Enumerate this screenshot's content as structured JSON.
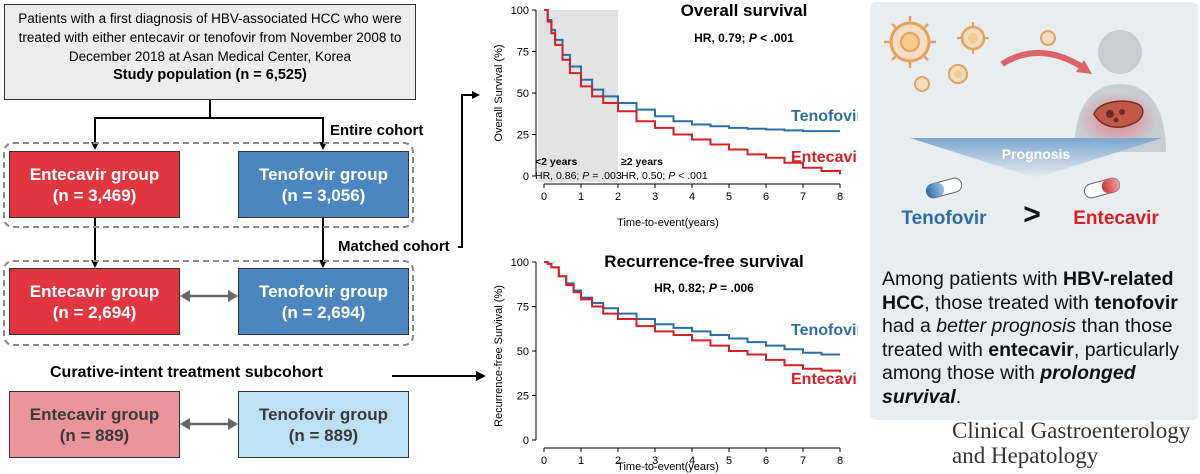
{
  "left": {
    "study_text": "Patients with a first diagnosis of HBV-associated HCC who were treated with either entecavir or tenofovir from November 2008 to December 2018 at Asan Medical Center, Korea",
    "study_population": "Study population (n = 6,525)",
    "entire_cohort_label": "Entire cohort",
    "matched_cohort_label": "Matched cohort",
    "subcohort_label": "Curative-intent treatment subcohort",
    "entire": {
      "entecavir": {
        "title": "Entecavir group",
        "n": "(n = 3,469)"
      },
      "tenofovir": {
        "title": "Tenofovir group",
        "n": "(n = 3,056)"
      }
    },
    "matched": {
      "entecavir": {
        "title": "Entecavir group",
        "n": "(n = 2,694)"
      },
      "tenofovir": {
        "title": "Tenofovir group",
        "n": "(n = 2,694)"
      }
    },
    "curative": {
      "entecavir": {
        "title": "Entecavir group",
        "n": "(n = 889)"
      },
      "tenofovir": {
        "title": "Tenofovir group",
        "n": "(n = 889)"
      }
    }
  },
  "chart_data": [
    {
      "type": "line",
      "title": "Overall survival",
      "hr_label": "HR, 0.79; ",
      "p_label": "P",
      "p_value": " < .001",
      "xlabel": "Time-to-event(years)",
      "ylabel": "Overall Survival (%)",
      "xlim": [
        0,
        8
      ],
      "ylim": [
        0,
        100
      ],
      "xticks": [
        "0",
        "1",
        "2",
        "3",
        "4",
        "5",
        "6",
        "7",
        "8"
      ],
      "yticks": [
        "0",
        "25",
        "50",
        "75",
        "100"
      ],
      "shaded_region": [
        0,
        2
      ],
      "annotations": {
        "early": {
          "head": "<2 years",
          "hr": "HR, 0.86; ",
          "p": "P",
          "pv": " = .003"
        },
        "late": {
          "head": "≥2 years",
          "hr": "HR, 0.50; ",
          "p": "P",
          "pv": " < .001"
        }
      },
      "series": [
        {
          "name": "Tenofovir",
          "color": "#2e6da4",
          "x": [
            0,
            0.1,
            0.2,
            0.3,
            0.5,
            0.7,
            1.0,
            1.3,
            1.6,
            2.0,
            2.5,
            3.0,
            3.5,
            4.0,
            4.5,
            5.0,
            5.5,
            6.0,
            6.5,
            7.0,
            7.5,
            8.0
          ],
          "y": [
            100,
            94,
            88,
            82,
            73,
            66,
            58,
            52,
            48,
            44,
            40,
            36,
            33,
            31,
            30,
            29,
            28.5,
            28,
            27.5,
            27,
            27,
            27
          ]
        },
        {
          "name": "Entecavir",
          "color": "#d42027",
          "x": [
            0,
            0.1,
            0.2,
            0.3,
            0.5,
            0.7,
            1.0,
            1.3,
            1.6,
            2.0,
            2.5,
            3.0,
            3.5,
            4.0,
            4.5,
            5.0,
            5.5,
            6.0,
            6.5,
            7.0,
            7.5,
            8.0
          ],
          "y": [
            100,
            93,
            86,
            79,
            70,
            62,
            54,
            48,
            44,
            39,
            33,
            29,
            25,
            22,
            19,
            16,
            13,
            11,
            8,
            5,
            3,
            1
          ]
        }
      ]
    },
    {
      "type": "line",
      "title": "Recurrence-free survival",
      "hr_label": "HR, 0.82; ",
      "p_label": "P",
      "p_value": " = .006",
      "xlabel": "Time-to-event(years)",
      "ylabel": "Recurrence-free Survival (%)",
      "xlim": [
        0,
        8
      ],
      "ylim": [
        0,
        100
      ],
      "xticks": [
        "0",
        "1",
        "2",
        "3",
        "4",
        "5",
        "6",
        "7",
        "8"
      ],
      "yticks": [
        "0",
        "25",
        "50",
        "75",
        "100"
      ],
      "series": [
        {
          "name": "Tenofovir",
          "color": "#2e6da4",
          "x": [
            0,
            0.1,
            0.2,
            0.4,
            0.6,
            0.8,
            1.0,
            1.3,
            1.6,
            2.0,
            2.5,
            3.0,
            3.5,
            4.0,
            4.5,
            5.0,
            5.5,
            6.0,
            6.5,
            7.0,
            7.5,
            8.0
          ],
          "y": [
            100,
            99,
            97,
            92,
            88,
            84,
            80,
            77,
            74,
            71,
            68,
            65,
            63,
            61,
            59,
            57,
            55,
            53,
            51,
            49,
            48,
            48
          ]
        },
        {
          "name": "Entecavir",
          "color": "#d42027",
          "x": [
            0,
            0.1,
            0.2,
            0.4,
            0.6,
            0.8,
            1.0,
            1.3,
            1.6,
            2.0,
            2.5,
            3.0,
            3.5,
            4.0,
            4.5,
            5.0,
            5.5,
            6.0,
            6.5,
            7.0,
            7.5,
            8.0
          ],
          "y": [
            100,
            99,
            97,
            92,
            87,
            83,
            79,
            75,
            71,
            68,
            64,
            61,
            59,
            56,
            53,
            50,
            48,
            45,
            42,
            40,
            39,
            38
          ]
        }
      ]
    }
  ],
  "right": {
    "prognosis_label": "Prognosis",
    "tenofovir_label": "Tenofovir",
    "gt_symbol": ">",
    "entecavir_label": "Entecavir",
    "summary": {
      "s1": "Among patients with ",
      "b1": "HBV-related HCC",
      "s2": ", those treated with ",
      "b2": "tenofovir",
      "s3": " had a ",
      "i1": "better prognosis",
      "s4": " than those treated with ",
      "b3": "entecavir",
      "s5": ", particularly among those with ",
      "bi1": "prolonged survival",
      "s6": "."
    },
    "journal_line1": "Clinical Gastroenterology",
    "journal_line2": "and Hepatology"
  },
  "icons": [
    "virus-icon",
    "human-silhouette-icon",
    "liver-icon",
    "capsule-icon",
    "arrow-icon"
  ]
}
